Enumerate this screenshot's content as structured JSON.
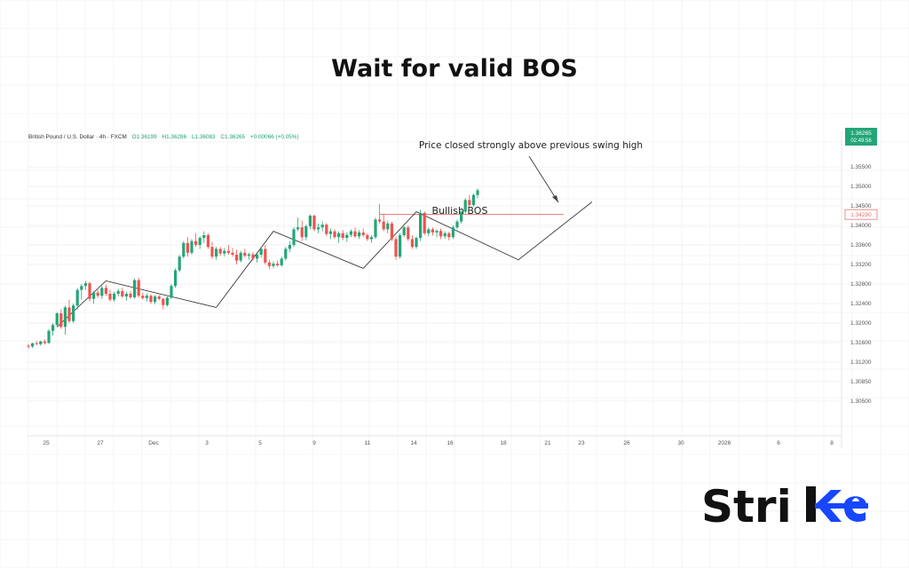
{
  "title": "Wait for valid BOS",
  "chart_data": {
    "type": "candlestick",
    "symbol_line": {
      "name": "British Pound / U.S. Dollar · 4h · FXCM",
      "o": "O1.36199",
      "h": "H1.36286",
      "l": "L1.36083",
      "c": "C1.36265",
      "change": "+0.00066 (+0.05%)"
    },
    "price_badge": {
      "price": "1.36265",
      "countdown": "02:49:56"
    },
    "level_badge": "1.34280",
    "y_ticks": [
      "1.35500",
      "1.35000",
      "1.34500",
      "1.34000",
      "1.33600",
      "1.33200",
      "1.32800",
      "1.32400",
      "1.32000",
      "1.31600",
      "1.31200",
      "1.30850",
      "1.30500"
    ],
    "x_ticks": [
      "25",
      "27",
      "Dec",
      "3",
      "5",
      "9",
      "11",
      "14",
      "16",
      "18",
      "21",
      "23",
      "26",
      "30",
      "2026",
      "6",
      "8"
    ],
    "level_line_price": 1.3428,
    "annotations": {
      "bos": "Bullish BOS",
      "note": "Price closed strongly above previous swing high"
    },
    "candles": [
      [
        1.3092,
        1.3096,
        1.3084,
        1.309
      ],
      [
        1.309,
        1.31,
        1.3086,
        1.3098
      ],
      [
        1.3098,
        1.3104,
        1.3094,
        1.3096
      ],
      [
        1.3096,
        1.3105,
        1.3092,
        1.3103
      ],
      [
        1.3103,
        1.3108,
        1.3095,
        1.3099
      ],
      [
        1.3099,
        1.3135,
        1.3097,
        1.313
      ],
      [
        1.313,
        1.315,
        1.3118,
        1.3145
      ],
      [
        1.3145,
        1.3178,
        1.314,
        1.3175
      ],
      [
        1.3175,
        1.3185,
        1.3135,
        1.314
      ],
      [
        1.314,
        1.3195,
        1.312,
        1.319
      ],
      [
        1.319,
        1.321,
        1.315,
        1.3155
      ],
      [
        1.3155,
        1.32,
        1.315,
        1.3195
      ],
      [
        1.3195,
        1.324,
        1.3185,
        1.3235
      ],
      [
        1.3235,
        1.325,
        1.321,
        1.3245
      ],
      [
        1.3245,
        1.3258,
        1.3235,
        1.3252
      ],
      [
        1.3252,
        1.3256,
        1.3205,
        1.3212
      ],
      [
        1.3212,
        1.3232,
        1.32,
        1.3228
      ],
      [
        1.3228,
        1.3236,
        1.3215,
        1.322
      ],
      [
        1.322,
        1.3245,
        1.3212,
        1.324
      ],
      [
        1.324,
        1.3248,
        1.322,
        1.3225
      ],
      [
        1.3225,
        1.3235,
        1.3205,
        1.321
      ],
      [
        1.321,
        1.323,
        1.3205,
        1.3225
      ],
      [
        1.3225,
        1.3238,
        1.3218,
        1.3232
      ],
      [
        1.3232,
        1.324,
        1.3215,
        1.3218
      ],
      [
        1.3218,
        1.323,
        1.3208,
        1.3225
      ],
      [
        1.3225,
        1.3232,
        1.3212,
        1.3216
      ],
      [
        1.3216,
        1.3264,
        1.3212,
        1.326
      ],
      [
        1.326,
        1.3266,
        1.3215,
        1.322
      ],
      [
        1.322,
        1.3228,
        1.321,
        1.3214
      ],
      [
        1.3214,
        1.3226,
        1.3205,
        1.322
      ],
      [
        1.322,
        1.3224,
        1.32,
        1.3204
      ],
      [
        1.3204,
        1.3222,
        1.3198,
        1.3218
      ],
      [
        1.3218,
        1.3222,
        1.3208,
        1.3212
      ],
      [
        1.3212,
        1.3214,
        1.3185,
        1.3196
      ],
      [
        1.3196,
        1.3218,
        1.3192,
        1.3215
      ],
      [
        1.3215,
        1.325,
        1.3212,
        1.3245
      ],
      [
        1.3245,
        1.329,
        1.324,
        1.3285
      ],
      [
        1.3285,
        1.3325,
        1.328,
        1.332
      ],
      [
        1.332,
        1.336,
        1.3315,
        1.3355
      ],
      [
        1.3355,
        1.337,
        1.332,
        1.333
      ],
      [
        1.333,
        1.3365,
        1.3325,
        1.336
      ],
      [
        1.336,
        1.338,
        1.3345,
        1.335
      ],
      [
        1.335,
        1.3372,
        1.334,
        1.3368
      ],
      [
        1.3368,
        1.3385,
        1.3355,
        1.3375
      ],
      [
        1.3375,
        1.338,
        1.334,
        1.3345
      ],
      [
        1.3345,
        1.3358,
        1.3315,
        1.332
      ],
      [
        1.332,
        1.3345,
        1.3312,
        1.334
      ],
      [
        1.334,
        1.3345,
        1.3322,
        1.3328
      ],
      [
        1.3328,
        1.3342,
        1.332,
        1.3335
      ],
      [
        1.3335,
        1.335,
        1.3325,
        1.333
      ],
      [
        1.333,
        1.3342,
        1.332,
        1.3325
      ],
      [
        1.3325,
        1.3338,
        1.33,
        1.331
      ],
      [
        1.331,
        1.3335,
        1.3305,
        1.333
      ],
      [
        1.333,
        1.334,
        1.3318,
        1.3322
      ],
      [
        1.3322,
        1.333,
        1.3312,
        1.3326
      ],
      [
        1.3326,
        1.3332,
        1.331,
        1.3315
      ],
      [
        1.3315,
        1.333,
        1.3305,
        1.3325
      ],
      [
        1.3325,
        1.3345,
        1.3318,
        1.334
      ],
      [
        1.334,
        1.335,
        1.33,
        1.3305
      ],
      [
        1.3305,
        1.3312,
        1.3288,
        1.3296
      ],
      [
        1.3296,
        1.3308,
        1.329,
        1.3302
      ],
      [
        1.3302,
        1.331,
        1.3294,
        1.3298
      ],
      [
        1.3298,
        1.332,
        1.3294,
        1.3315
      ],
      [
        1.3315,
        1.3345,
        1.331,
        1.334
      ],
      [
        1.334,
        1.336,
        1.3332,
        1.335
      ],
      [
        1.335,
        1.3395,
        1.3345,
        1.339
      ],
      [
        1.339,
        1.342,
        1.3385,
        1.3395
      ],
      [
        1.3395,
        1.3412,
        1.336,
        1.337
      ],
      [
        1.337,
        1.3402,
        1.3362,
        1.3398
      ],
      [
        1.3398,
        1.3428,
        1.339,
        1.3425
      ],
      [
        1.3425,
        1.3428,
        1.3385,
        1.339
      ],
      [
        1.339,
        1.3405,
        1.338,
        1.3395
      ],
      [
        1.3395,
        1.341,
        1.3385,
        1.3402
      ],
      [
        1.3402,
        1.3406,
        1.3372,
        1.3378
      ],
      [
        1.3378,
        1.3392,
        1.3365,
        1.3385
      ],
      [
        1.3385,
        1.339,
        1.3365,
        1.337
      ],
      [
        1.337,
        1.3385,
        1.3355,
        1.338
      ],
      [
        1.338,
        1.3388,
        1.3362,
        1.3368
      ],
      [
        1.3368,
        1.3382,
        1.3358,
        1.3376
      ],
      [
        1.3376,
        1.339,
        1.337,
        1.3385
      ],
      [
        1.3385,
        1.3395,
        1.3368,
        1.3372
      ],
      [
        1.3372,
        1.3388,
        1.3365,
        1.3382
      ],
      [
        1.3382,
        1.3392,
        1.337,
        1.3375
      ],
      [
        1.3375,
        1.338,
        1.336,
        1.3365
      ],
      [
        1.3365,
        1.3375,
        1.3355,
        1.337
      ],
      [
        1.337,
        1.342,
        1.3365,
        1.3415
      ],
      [
        1.3415,
        1.3455,
        1.3405,
        1.341
      ],
      [
        1.341,
        1.343,
        1.3385,
        1.339
      ],
      [
        1.339,
        1.3412,
        1.338,
        1.3405
      ],
      [
        1.3405,
        1.341,
        1.336,
        1.3365
      ],
      [
        1.3365,
        1.3372,
        1.3312,
        1.332
      ],
      [
        1.332,
        1.338,
        1.3315,
        1.3375
      ],
      [
        1.3375,
        1.3398,
        1.337,
        1.3395
      ],
      [
        1.3395,
        1.34,
        1.336,
        1.3365
      ],
      [
        1.3365,
        1.3375,
        1.334,
        1.3345
      ],
      [
        1.3345,
        1.3372,
        1.334,
        1.3368
      ],
      [
        1.3368,
        1.344,
        1.336,
        1.3432
      ],
      [
        1.3432,
        1.3436,
        1.3375,
        1.338
      ],
      [
        1.338,
        1.3395,
        1.3372,
        1.339
      ],
      [
        1.339,
        1.3395,
        1.3374,
        1.3382
      ],
      [
        1.3382,
        1.339,
        1.337,
        1.3386
      ],
      [
        1.3386,
        1.3392,
        1.3365,
        1.3372
      ],
      [
        1.3372,
        1.3385,
        1.3366,
        1.338
      ],
      [
        1.338,
        1.3384,
        1.3362,
        1.337
      ],
      [
        1.337,
        1.34,
        1.3366,
        1.3395
      ],
      [
        1.3395,
        1.3415,
        1.339,
        1.341
      ],
      [
        1.341,
        1.344,
        1.3405,
        1.3435
      ],
      [
        1.3435,
        1.347,
        1.343,
        1.3465
      ],
      [
        1.3465,
        1.3478,
        1.3448,
        1.3452
      ],
      [
        1.3452,
        1.3482,
        1.3448,
        1.3478
      ],
      [
        1.3478,
        1.3495,
        1.347,
        1.349
      ]
    ],
    "swing_lines": [
      [
        [
          7,
          1.314
        ],
        [
          19,
          1.3258
        ],
        [
          46,
          1.319
        ]
      ],
      [
        [
          46,
          1.319
        ],
        [
          60,
          1.3385
        ],
        [
          82,
          1.329
        ]
      ],
      [
        [
          82,
          1.329
        ],
        [
          95,
          1.3435
        ],
        [
          120,
          1.3312
        ],
        [
          138,
          1.346
        ]
      ]
    ]
  }
}
